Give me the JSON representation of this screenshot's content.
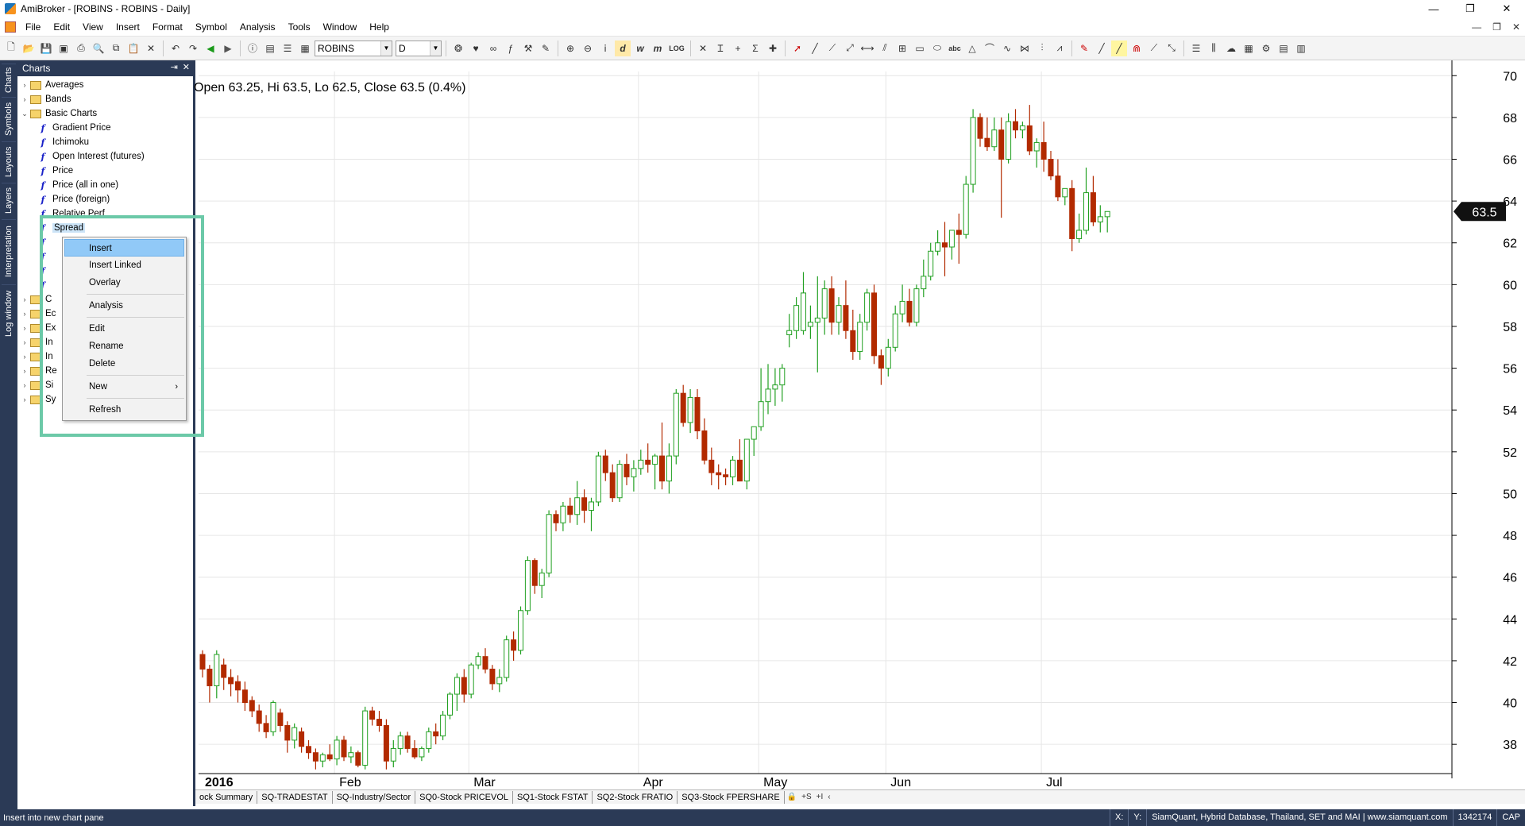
{
  "window": {
    "title": "AmiBroker - [ROBINS - ROBINS - Daily]",
    "controls": {
      "minimize": "—",
      "restore": "❐",
      "close": "✕"
    }
  },
  "menubar": {
    "items": [
      "File",
      "Edit",
      "View",
      "Insert",
      "Format",
      "Symbol",
      "Analysis",
      "Tools",
      "Window",
      "Help"
    ],
    "mdi_controls": {
      "minimize": "—",
      "restore": "❐",
      "close": "✕"
    }
  },
  "toolbar": {
    "symbol_value": "ROBINS",
    "interval_value": "D",
    "icons_group1": [
      "new-file-icon",
      "open-folder-icon",
      "save-icon",
      "save-all-icon",
      "print-icon",
      "print-preview-icon",
      "copy-icon",
      "paste-icon",
      "cut-icon",
      "delete-icon"
    ],
    "icons_group2": [
      "undo-icon",
      "redo-icon",
      "back-icon",
      "forward-icon"
    ],
    "icons_group3": [
      "info-icon",
      "quote-editor-icon",
      "watchlist-icon",
      "layout-icon"
    ],
    "text_buttons": [
      "d",
      "w",
      "m",
      "LOG"
    ],
    "drawing_tools": [
      "select-arrow-icon",
      "trendline-icon",
      "ray-icon",
      "extended-line-icon",
      "horizontal-line-icon",
      "parallel-lines-icon",
      "fibonacci-icon",
      "rectangle-icon",
      "ellipse-icon",
      "triangle-icon",
      "arc-icon",
      "gann-icon",
      "cycles-icon",
      "fib-fan-icon",
      "zigzag-icon"
    ],
    "drawing_text_label": "abc"
  },
  "sidetabs": [
    "Charts",
    "Symbols",
    "Layouts",
    "Layers",
    "Interpretation",
    "Log window"
  ],
  "charts_panel": {
    "title": "Charts",
    "header_buttons": [
      "⇥",
      "✕"
    ],
    "tree": [
      {
        "type": "folder",
        "label": "Averages",
        "level": 0,
        "expander": ">"
      },
      {
        "type": "folder",
        "label": "Bands",
        "level": 0,
        "expander": ">"
      },
      {
        "type": "folder",
        "label": "Basic Charts",
        "level": 0,
        "expander": "v"
      },
      {
        "type": "formula",
        "label": "Gradient Price",
        "level": 1
      },
      {
        "type": "formula",
        "label": "Ichimoku",
        "level": 1
      },
      {
        "type": "formula",
        "label": "Open Interest (futures)",
        "level": 1
      },
      {
        "type": "formula",
        "label": "Price",
        "level": 1
      },
      {
        "type": "formula",
        "label": "Price (all in one)",
        "level": 1
      },
      {
        "type": "formula",
        "label": "Price (foreign)",
        "level": 1
      },
      {
        "type": "formula",
        "label": "Relative Perf",
        "level": 1
      },
      {
        "type": "formula",
        "label": "Spread",
        "level": 1,
        "selected": true
      },
      {
        "type": "formula",
        "label": "",
        "level": 1
      },
      {
        "type": "formula",
        "label": "",
        "level": 1
      },
      {
        "type": "formula",
        "label": "",
        "level": 1
      },
      {
        "type": "formula",
        "label": "",
        "level": 1
      },
      {
        "type": "folder",
        "label": "C",
        "level": 0,
        "expander": ">"
      },
      {
        "type": "folder",
        "label": "Ec",
        "level": 0,
        "expander": ">"
      },
      {
        "type": "folder",
        "label": "Ex",
        "level": 0,
        "expander": ">"
      },
      {
        "type": "folder",
        "label": "In",
        "level": 0,
        "expander": ">"
      },
      {
        "type": "folder",
        "label": "In",
        "level": 0,
        "expander": ">"
      },
      {
        "type": "folder",
        "label": "Re",
        "level": 0,
        "expander": ">"
      },
      {
        "type": "folder",
        "label": "Si",
        "level": 0,
        "expander": ">"
      },
      {
        "type": "folder",
        "label": "Sy",
        "level": 0,
        "expander": ">"
      }
    ]
  },
  "context_menu": {
    "items": [
      {
        "label": "Insert",
        "active": true
      },
      {
        "label": "Insert Linked"
      },
      {
        "label": "Overlay"
      },
      {
        "separator": true
      },
      {
        "label": "Analysis"
      },
      {
        "separator": true
      },
      {
        "label": "Edit"
      },
      {
        "label": "Rename"
      },
      {
        "label": "Delete"
      },
      {
        "separator": true
      },
      {
        "label": "New",
        "submenu": true
      },
      {
        "separator": true
      },
      {
        "label": "Refresh"
      }
    ],
    "submenu_arrow": "›"
  },
  "chart": {
    "ohlc_readout": "Open 63.25, Hi 63.5, Lo 62.5, Close 63.5 (0.4%)",
    "last_price_label": "63.5",
    "colors": {
      "up": "#22a022",
      "down": "#b22a00",
      "grid": "#e6e6e6",
      "price_badge_bg": "#111111",
      "price_badge_fg": "#ffffff"
    }
  },
  "chart_data": {
    "type": "candlestick",
    "y_ticks": [
      38,
      40,
      42,
      44,
      46,
      48,
      50,
      52,
      54,
      56,
      58,
      60,
      62,
      64,
      66,
      68,
      70
    ],
    "ylim": [
      36.6,
      70.2
    ],
    "x_month_labels": [
      {
        "label": "2016",
        "index": 0,
        "bold": true
      },
      {
        "label": "Feb",
        "index": 19
      },
      {
        "label": "Mar",
        "index": 38
      },
      {
        "label": "Apr",
        "index": 62
      },
      {
        "label": "May",
        "index": 79
      },
      {
        "label": "Jun",
        "index": 97
      },
      {
        "label": "Jul",
        "index": 119
      }
    ],
    "candles": [
      [
        42.3,
        42.5,
        41.2,
        41.6
      ],
      [
        41.6,
        41.8,
        40.0,
        40.8
      ],
      [
        40.8,
        42.5,
        40.2,
        42.3
      ],
      [
        41.8,
        42.1,
        40.6,
        41.2
      ],
      [
        41.2,
        41.6,
        40.3,
        40.9
      ],
      [
        41.0,
        41.3,
        40.0,
        40.6
      ],
      [
        40.6,
        41.0,
        39.6,
        40.0
      ],
      [
        40.1,
        40.3,
        39.3,
        39.6
      ],
      [
        39.6,
        39.9,
        38.6,
        39.0
      ],
      [
        39.0,
        39.4,
        38.3,
        38.6
      ],
      [
        38.6,
        40.1,
        38.4,
        40.0
      ],
      [
        39.5,
        39.7,
        38.6,
        38.9
      ],
      [
        38.9,
        39.1,
        37.6,
        38.2
      ],
      [
        38.2,
        39.0,
        37.8,
        38.8
      ],
      [
        38.6,
        38.8,
        37.6,
        37.9
      ],
      [
        37.9,
        38.2,
        37.3,
        37.6
      ],
      [
        37.6,
        37.8,
        36.8,
        37.2
      ],
      [
        37.2,
        37.6,
        36.9,
        37.5
      ],
      [
        37.5,
        38.0,
        37.2,
        37.3
      ],
      [
        37.3,
        38.4,
        37.0,
        38.2
      ],
      [
        38.2,
        38.4,
        37.2,
        37.4
      ],
      [
        37.4,
        37.9,
        37.1,
        37.6
      ],
      [
        37.6,
        37.7,
        36.9,
        37.0
      ],
      [
        37.0,
        39.8,
        36.8,
        39.6
      ],
      [
        39.6,
        39.8,
        38.9,
        39.2
      ],
      [
        39.2,
        39.6,
        38.6,
        38.9
      ],
      [
        38.9,
        39.2,
        36.8,
        37.2
      ],
      [
        37.2,
        38.2,
        36.9,
        37.8
      ],
      [
        37.8,
        38.6,
        37.5,
        38.4
      ],
      [
        38.4,
        38.6,
        37.6,
        37.8
      ],
      [
        37.8,
        38.2,
        37.3,
        37.4
      ],
      [
        37.4,
        37.9,
        37.2,
        37.8
      ],
      [
        37.8,
        38.8,
        37.6,
        38.6
      ],
      [
        38.6,
        39.0,
        38.0,
        38.4
      ],
      [
        38.4,
        39.6,
        38.2,
        39.4
      ],
      [
        39.4,
        40.5,
        39.2,
        40.4
      ],
      [
        40.4,
        41.4,
        39.6,
        41.2
      ],
      [
        41.2,
        41.6,
        40.0,
        40.4
      ],
      [
        40.4,
        41.9,
        40.2,
        41.8
      ],
      [
        41.8,
        42.4,
        41.6,
        42.2
      ],
      [
        42.2,
        42.6,
        41.4,
        41.6
      ],
      [
        41.6,
        41.8,
        40.6,
        40.9
      ],
      [
        40.9,
        41.6,
        40.5,
        41.2
      ],
      [
        41.2,
        43.2,
        41.0,
        43.0
      ],
      [
        43.0,
        43.4,
        42.0,
        42.5
      ],
      [
        42.5,
        44.6,
        42.3,
        44.4
      ],
      [
        44.4,
        47.0,
        44.2,
        46.8
      ],
      [
        46.8,
        46.9,
        45.2,
        45.6
      ],
      [
        45.6,
        46.4,
        45.0,
        46.2
      ],
      [
        46.2,
        49.2,
        46.0,
        49.0
      ],
      [
        49.0,
        49.2,
        48.2,
        48.6
      ],
      [
        48.6,
        49.6,
        48.2,
        49.4
      ],
      [
        49.4,
        49.8,
        48.6,
        49.0
      ],
      [
        49.0,
        50.6,
        48.5,
        49.8
      ],
      [
        49.8,
        50.2,
        48.6,
        49.2
      ],
      [
        49.2,
        49.8,
        48.2,
        49.6
      ],
      [
        49.6,
        52.0,
        49.4,
        51.8
      ],
      [
        51.8,
        52.1,
        50.6,
        51.0
      ],
      [
        51.0,
        51.4,
        49.6,
        49.8
      ],
      [
        49.8,
        51.6,
        49.6,
        51.4
      ],
      [
        51.4,
        51.9,
        50.4,
        50.8
      ],
      [
        50.8,
        51.6,
        50.1,
        51.2
      ],
      [
        51.2,
        52.1,
        50.9,
        51.6
      ],
      [
        51.6,
        52.4,
        51.0,
        51.4
      ],
      [
        51.4,
        51.9,
        50.2,
        51.8
      ],
      [
        51.8,
        53.4,
        50.2,
        50.6
      ],
      [
        50.6,
        52.4,
        50.0,
        51.8
      ],
      [
        51.8,
        55.0,
        51.4,
        54.8
      ],
      [
        54.8,
        55.2,
        53.2,
        53.4
      ],
      [
        53.4,
        55.0,
        52.9,
        54.6
      ],
      [
        54.6,
        55.0,
        52.6,
        53.0
      ],
      [
        53.0,
        53.6,
        51.4,
        51.6
      ],
      [
        51.6,
        52.2,
        50.4,
        51.0
      ],
      [
        51.0,
        51.4,
        50.2,
        50.9
      ],
      [
        50.9,
        51.2,
        50.4,
        50.8
      ],
      [
        50.8,
        51.8,
        50.4,
        51.6
      ],
      [
        51.6,
        52.6,
        50.6,
        50.6
      ],
      [
        50.6,
        52.6,
        50.2,
        52.6
      ],
      [
        52.6,
        53.2,
        51.8,
        53.2
      ],
      [
        53.2,
        56.0,
        53.0,
        54.4
      ],
      [
        54.4,
        56.2,
        53.8,
        55.0
      ],
      [
        55.0,
        56.0,
        54.2,
        55.2
      ],
      [
        55.2,
        56.2,
        54.4,
        56.0
      ],
      [
        57.6,
        58.6,
        57.0,
        57.8
      ],
      [
        57.8,
        59.4,
        57.4,
        59.0
      ],
      [
        57.8,
        60.6,
        57.6,
        59.6
      ],
      [
        58.0,
        59.0,
        57.4,
        58.2
      ],
      [
        58.2,
        60.4,
        55.8,
        58.4
      ],
      [
        58.4,
        60.2,
        57.6,
        59.8
      ],
      [
        59.8,
        60.4,
        57.6,
        58.2
      ],
      [
        58.2,
        59.4,
        57.6,
        59.0
      ],
      [
        59.0,
        60.2,
        57.4,
        57.8
      ],
      [
        57.8,
        58.8,
        56.4,
        56.8
      ],
      [
        56.8,
        58.6,
        56.4,
        58.2
      ],
      [
        58.2,
        59.8,
        57.8,
        59.6
      ],
      [
        59.6,
        60.0,
        56.2,
        56.6
      ],
      [
        56.6,
        56.9,
        55.2,
        56.0
      ],
      [
        56.0,
        57.4,
        55.6,
        57.0
      ],
      [
        57.0,
        59.0,
        56.8,
        58.6
      ],
      [
        58.6,
        60.0,
        58.2,
        59.2
      ],
      [
        59.2,
        59.8,
        58.0,
        58.2
      ],
      [
        58.2,
        60.0,
        58.0,
        59.8
      ],
      [
        59.8,
        61.2,
        59.4,
        60.4
      ],
      [
        60.4,
        62.0,
        60.2,
        61.6
      ],
      [
        61.6,
        62.6,
        61.4,
        62.0
      ],
      [
        62.0,
        63.0,
        60.4,
        61.8
      ],
      [
        61.8,
        62.6,
        61.2,
        62.6
      ],
      [
        62.6,
        63.4,
        61.0,
        62.4
      ],
      [
        62.4,
        65.2,
        62.2,
        64.8
      ],
      [
        64.8,
        68.4,
        64.4,
        68.0
      ],
      [
        68.0,
        68.2,
        66.6,
        67.0
      ],
      [
        67.0,
        68.0,
        66.4,
        66.6
      ],
      [
        66.6,
        68.0,
        66.4,
        67.4
      ],
      [
        67.4,
        68.0,
        63.2,
        66.0
      ],
      [
        66.0,
        68.2,
        65.8,
        67.8
      ],
      [
        67.8,
        68.4,
        67.0,
        67.4
      ],
      [
        67.4,
        67.8,
        67.0,
        67.6
      ],
      [
        67.6,
        68.6,
        66.2,
        66.4
      ],
      [
        66.4,
        67.0,
        65.6,
        66.8
      ],
      [
        66.8,
        67.8,
        65.4,
        66.0
      ],
      [
        66.0,
        66.4,
        65.0,
        65.2
      ],
      [
        65.2,
        66.0,
        64.0,
        64.2
      ],
      [
        64.2,
        64.6,
        63.8,
        64.6
      ],
      [
        64.6,
        65.0,
        61.6,
        62.2
      ],
      [
        62.2,
        63.4,
        62.0,
        62.6
      ],
      [
        62.6,
        65.6,
        62.4,
        64.4
      ],
      [
        64.4,
        65.2,
        62.8,
        63.0
      ],
      [
        63.0,
        63.8,
        62.5,
        63.25
      ],
      [
        63.25,
        63.5,
        62.5,
        63.5
      ]
    ]
  },
  "sheet_tabs": {
    "nav": [
      "‹",
      "›"
    ],
    "tabs": [
      "ock Summary",
      "SQ-TRADESTAT",
      "SQ-Industry/Sector",
      "SQ0-Stock PRICEVOL",
      "SQ1-Stock FSTAT",
      "SQ2-Stock FRATIO",
      "SQ3-Stock FPERSHARE"
    ],
    "controls": [
      "🔒",
      "+S",
      "+I",
      "‹"
    ]
  },
  "statusbar": {
    "hint": "Insert into new chart pane",
    "x_label": "X:",
    "y_label": "Y:",
    "database": "SiamQuant, Hybrid Database, Thailand, SET and MAI | www.siamquant.com",
    "memory": "1342174",
    "caps": "CAP"
  }
}
